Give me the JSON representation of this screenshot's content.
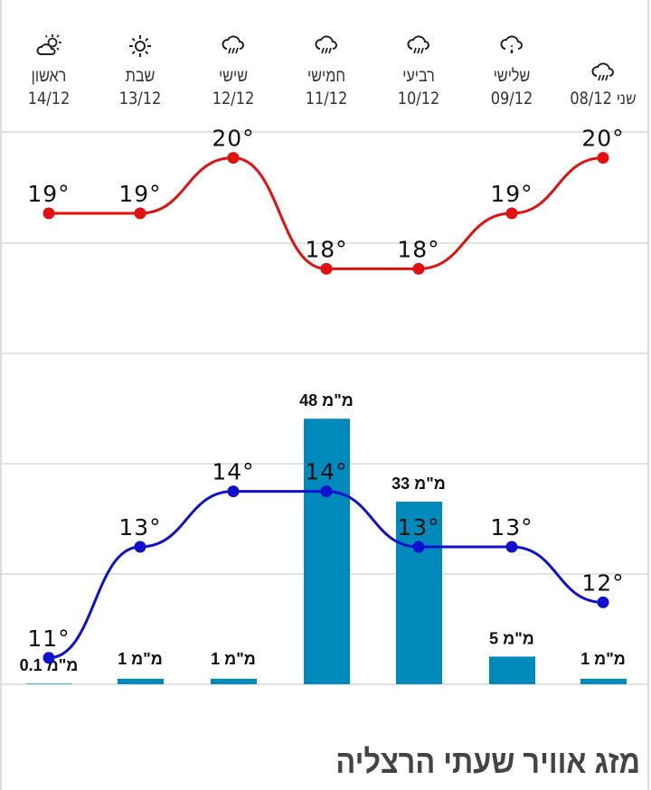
{
  "days": [
    {
      "name": "ראשון",
      "date": "14/12",
      "icon": "partly-cloudy-icon"
    },
    {
      "name": "שבת",
      "date": "13/12",
      "icon": "sun-icon"
    },
    {
      "name": "שישי",
      "date": "12/12",
      "icon": "rain-cloud-icon"
    },
    {
      "name": "חמישי",
      "date": "11/12",
      "icon": "rain-cloud-icon"
    },
    {
      "name": "רביעי",
      "date": "10/12",
      "icon": "rain-cloud-icon"
    },
    {
      "name": "שלישי",
      "date": "09/12",
      "icon": "drizzle-cloud-icon"
    },
    {
      "name": "שני",
      "date": "08/12",
      "icon": "rain-cloud-icon"
    }
  ],
  "chart_data": {
    "type": "line",
    "categories": [
      "14/12",
      "13/12",
      "12/12",
      "11/12",
      "10/12",
      "09/12",
      "08/12"
    ],
    "series": [
      {
        "values": [
          19,
          19,
          20,
          18,
          18,
          19,
          20
        ],
        "color": "#e31010",
        "labels": [
          "19°",
          "19°",
          "20°",
          "18°",
          "18°",
          "19°",
          "20°"
        ]
      },
      {
        "values": [
          11,
          13,
          14,
          14,
          13,
          13,
          12
        ],
        "color": "#1010d0",
        "labels": [
          "11°",
          "13°",
          "14°",
          "14°",
          "13°",
          "13°",
          "12°"
        ]
      }
    ],
    "rain": {
      "type": "bar",
      "values": [
        0.1,
        1,
        1,
        48,
        33,
        5,
        1
      ],
      "labels": [
        "0.1 מ\"מ",
        "1 מ\"מ",
        "1 מ\"מ",
        "48 מ\"מ",
        "33 מ\"מ",
        "5 מ\"מ",
        "1 מ\"מ"
      ],
      "color": "#0089bb"
    },
    "grid": true
  },
  "section_title": "מזג אוויר שעתי הרצליה"
}
